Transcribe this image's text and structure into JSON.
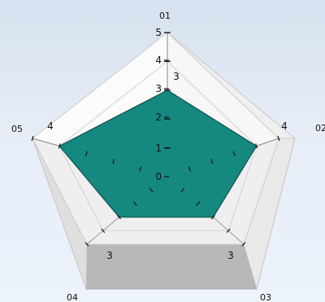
{
  "chart_data": {
    "type": "radar",
    "categories": [
      "01",
      "02",
      "03",
      "04",
      "05"
    ],
    "values": [
      3,
      4,
      3,
      3,
      4
    ],
    "scale_labels": [
      "0",
      "1",
      "2",
      "3",
      "4",
      "5"
    ],
    "ylim": [
      0,
      5
    ],
    "grid": true,
    "fill_color": "#15897f",
    "stroke_color": "#124f52"
  }
}
